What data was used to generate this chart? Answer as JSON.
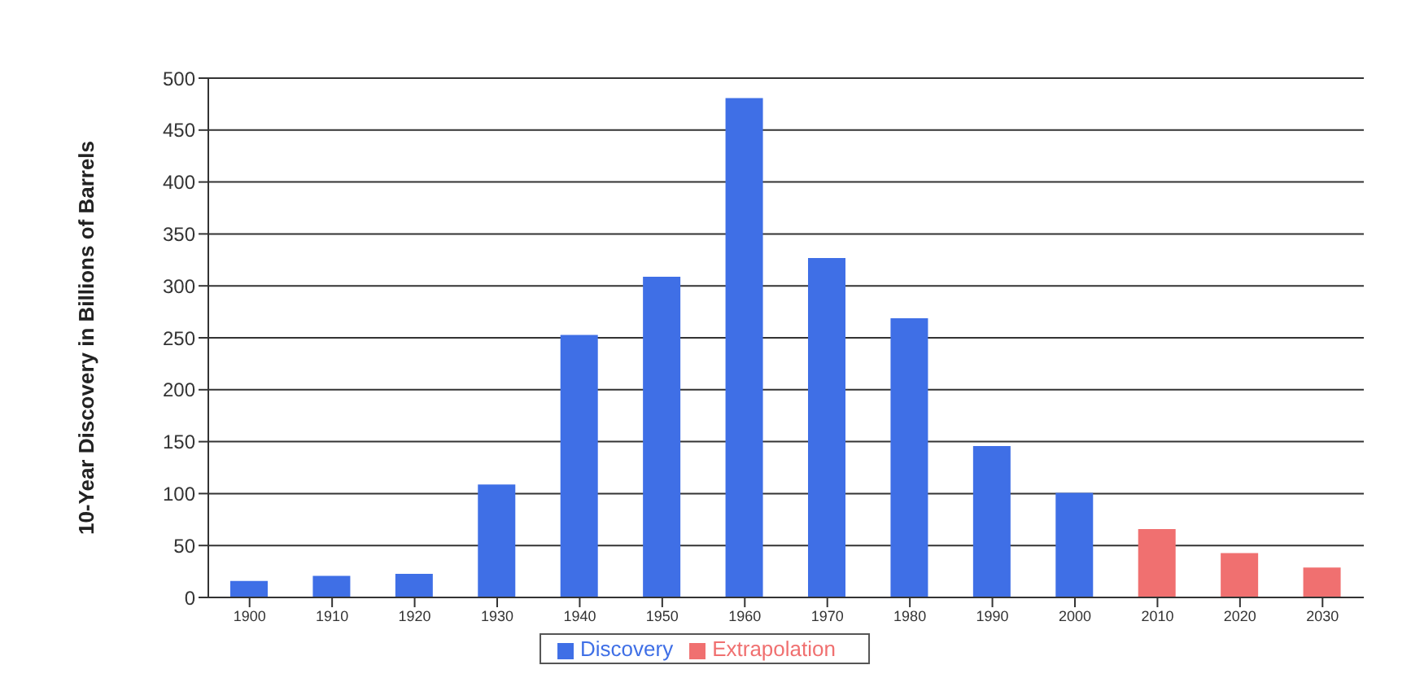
{
  "chart_data": {
    "type": "bar",
    "ylabel": "10-Year Discovery in Billions of Barrels",
    "categories": [
      "1900",
      "1910",
      "1920",
      "1930",
      "1940",
      "1950",
      "1960",
      "1970",
      "1980",
      "1990",
      "2000",
      "2010",
      "2020",
      "2030"
    ],
    "series": [
      {
        "name": "Discovery",
        "color": "#3f6fe6",
        "values": [
          15,
          20,
          22,
          108,
          252,
          308,
          480,
          326,
          268,
          145,
          100,
          null,
          null,
          null
        ]
      },
      {
        "name": "Extrapolation",
        "color": "#f07070",
        "values": [
          null,
          null,
          null,
          null,
          null,
          null,
          null,
          null,
          null,
          null,
          null,
          65,
          42,
          28
        ]
      }
    ],
    "stacked": true,
    "ylim": [
      0,
      500
    ],
    "yticks": [
      0,
      50,
      100,
      150,
      200,
      250,
      300,
      350,
      400,
      450,
      500
    ],
    "grid": "y",
    "legend": "bottom"
  }
}
